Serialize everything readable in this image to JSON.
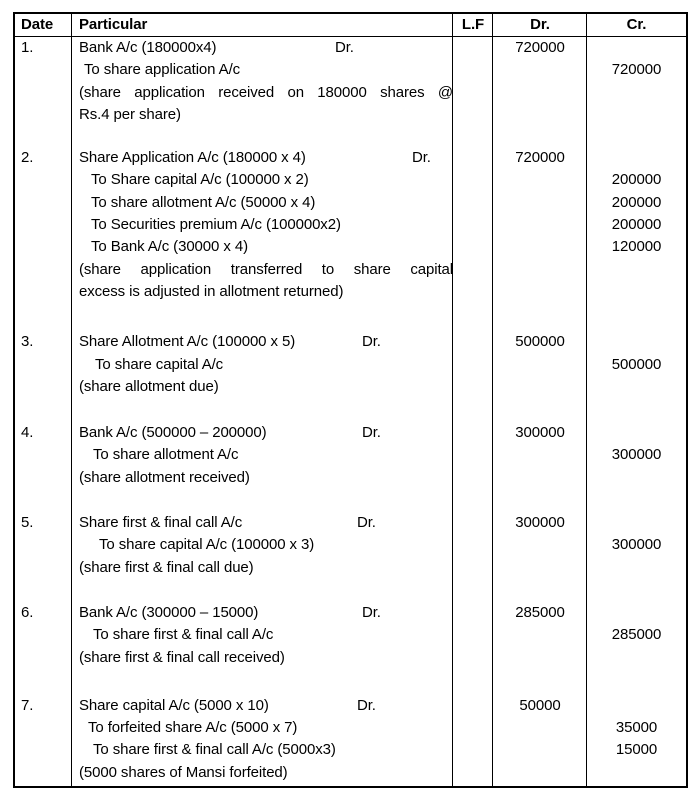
{
  "table": {
    "columns": {
      "date": "Date",
      "particular": "Particular",
      "lf": "L.F",
      "dr": "Dr.",
      "cr": "Cr."
    },
    "entries": [
      {
        "no": "1.",
        "gap": 21,
        "lines": [
          {
            "p": "Bank A/c (180000x4)",
            "drmark": "Dr.",
            "drx": 256,
            "dr": "720000"
          },
          {
            "p": "To share application A/c",
            "ind": 5,
            "cr": "720000"
          },
          {
            "p": "(share application received on 180000 shares @",
            "just": true
          },
          {
            "p": "Rs.4 per share)"
          }
        ]
      },
      {
        "no": "2.",
        "gap": 28,
        "lines": [
          {
            "p": "Share Application A/c (180000 x 4)",
            "drmark": "Dr.",
            "drx": 333,
            "dr": "720000"
          },
          {
            "p": "To Share capital A/c (100000 x 2)",
            "ind": 12,
            "cr": "200000"
          },
          {
            "p": "To share allotment A/c (50000 x 4)",
            "ind": 12,
            "cr": "200000"
          },
          {
            "p": "To Securities premium A/c (100000x2)",
            "ind": 12,
            "cr": "200000"
          },
          {
            "p": "To Bank A/c (30000 x 4)",
            "ind": 12,
            "cr": "120000"
          },
          {
            "p": "(share application transferred to share capital",
            "just": true
          },
          {
            "p": "excess is adjusted in allotment returned)"
          }
        ]
      },
      {
        "no": "3.",
        "gap": 24,
        "lines": [
          {
            "p": "Share Allotment A/c (100000 x 5)",
            "drmark": "Dr.",
            "drx": 283,
            "dr": "500000"
          },
          {
            "p": "To share capital A/c",
            "ind": 16,
            "cr": "500000"
          },
          {
            "p": "(share allotment due)"
          }
        ]
      },
      {
        "no": "4.",
        "gap": 23,
        "lines": [
          {
            "p": "Bank A/c (500000 – 200000)",
            "drmark": "Dr.",
            "drx": 283,
            "dr": "300000"
          },
          {
            "p": "To share allotment A/c",
            "ind": 14,
            "cr": "300000"
          },
          {
            "p": "(share allotment received)"
          }
        ]
      },
      {
        "no": "5.",
        "gap": 23,
        "lines": [
          {
            "p": "Share first & final call A/c",
            "drmark": "Dr.",
            "drx": 278,
            "dr": "300000"
          },
          {
            "p": "To share capital A/c (100000 x 3)",
            "ind": 20,
            "cr": "300000"
          },
          {
            "p": "(share first & final call due)"
          }
        ]
      },
      {
        "no": "6.",
        "gap": 26,
        "lines": [
          {
            "p": "Bank A/c (300000 – 15000)",
            "drmark": "Dr.",
            "drx": 283,
            "dr": "285000"
          },
          {
            "p": "To share first & final call A/c",
            "ind": 14,
            "cr": "285000"
          },
          {
            "p": "(share first & final call received)"
          }
        ]
      },
      {
        "no": "7.",
        "gap": 0,
        "lines": [
          {
            "p": "Share capital A/c (5000 x 10)",
            "drmark": "Dr.",
            "drx": 278,
            "dr": "50000"
          },
          {
            "p": "To forfeited share A/c (5000 x 7)",
            "ind": 9,
            "cr": "35000"
          },
          {
            "p": "To share first & final call A/c (5000x3)",
            "ind": 14,
            "cr": "15000"
          },
          {
            "p": "(5000 shares of Mansi forfeited)"
          }
        ]
      }
    ]
  }
}
